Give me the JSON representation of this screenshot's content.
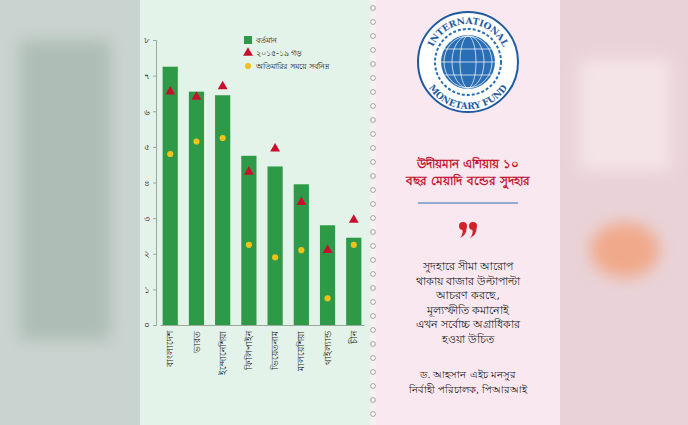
{
  "chart_data": {
    "type": "bar",
    "title": "উদীয়মান এশিয়ায় ১০ বছর মেয়াদি বন্ডের সুদহার",
    "categories": [
      "বাংলাদেশ",
      "ভারত",
      "ইন্দোনেশিয়া",
      "ফিলিপাইন",
      "ভিয়েতনাম",
      "মালয়েশিয়া",
      "থাইল্যান্ড",
      "চীন"
    ],
    "series": [
      {
        "name": "বর্তমান",
        "type": "bar",
        "color": "#2e9a47",
        "values": [
          7.25,
          6.55,
          6.45,
          4.75,
          4.45,
          3.95,
          2.8,
          2.45
        ]
      },
      {
        "name": "২০১৫-১৯ গড়",
        "type": "scatter",
        "marker": "triangle",
        "color": "#c8102e",
        "values": [
          6.55,
          6.4,
          6.7,
          4.3,
          4.95,
          3.45,
          2.1,
          2.95
        ]
      },
      {
        "name": "অতিমারির সময়ে সর্বনিম্ন",
        "type": "scatter",
        "marker": "circle",
        "color": "#f2c21b",
        "values": [
          4.8,
          5.15,
          5.25,
          2.25,
          1.9,
          2.1,
          0.75,
          2.25
        ]
      }
    ],
    "ylim": [
      0,
      8
    ],
    "yticks": [
      {
        "value": 0,
        "label": "০"
      },
      {
        "value": 1,
        "label": "১"
      },
      {
        "value": 2,
        "label": "২"
      },
      {
        "value": 3,
        "label": "৩"
      },
      {
        "value": 4,
        "label": "৪"
      },
      {
        "value": 5,
        "label": "৫"
      },
      {
        "value": 6,
        "label": "৬"
      },
      {
        "value": 7,
        "label": "৭"
      },
      {
        "value": 8,
        "label": "৮"
      }
    ],
    "grid": false,
    "legend": "top-right",
    "annotations": [
      "INTERNATIONAL",
      "MONETARY FUND",
      "সুদহারে সীমা আরোপ",
      "থাকায় বাজার উল্টাপাল্টা",
      "আচরণ করছে,",
      "মূল্যস্ফীতি কমানোই",
      "এখন সর্বোচ্চ অগ্রাধিকার",
      "হওয়া উচিত",
      "ড. আহসান এইচ মনসুর",
      "নির্বাহী পরিচালক, পিআরআই"
    ]
  }
}
